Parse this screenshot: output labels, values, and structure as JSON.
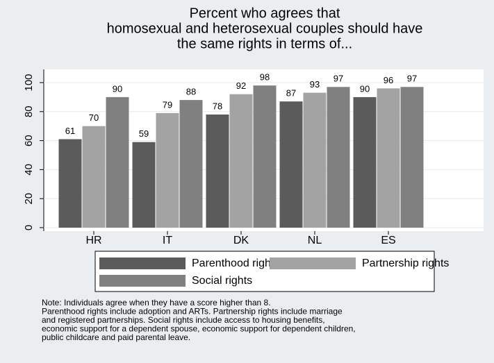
{
  "chart_data": {
    "type": "bar",
    "title": [
      "Percent who agrees that",
      "homosexual and heterosexual couples should have",
      "the same rights in terms of..."
    ],
    "categories": [
      "HR",
      "IT",
      "DK",
      "NL",
      "ES"
    ],
    "series": [
      {
        "name": "Parenthood rights",
        "color": "#5b5b5b",
        "values": [
          61,
          59,
          78,
          87,
          90
        ]
      },
      {
        "name": "Partnership rights",
        "color": "#a3a3a3",
        "values": [
          70,
          79,
          92,
          93,
          96
        ]
      },
      {
        "name": "Social rights",
        "color": "#808080",
        "values": [
          90,
          88,
          98,
          97,
          97
        ]
      }
    ],
    "ylim": [
      0,
      100
    ],
    "yticks": [
      0,
      20,
      40,
      60,
      80,
      100
    ],
    "grid": true,
    "note": [
      "Note: Individuals agree when they have a score higher than 8.",
      "Parenthood rights include adoption and ARTs. Partnership rights include marriage",
      "and registered partnerships. Social rights include access to housing benefits,",
      "economic support for a dependent spouse, economic support for dependent children,",
      "public childcare and paid parental leave."
    ]
  }
}
